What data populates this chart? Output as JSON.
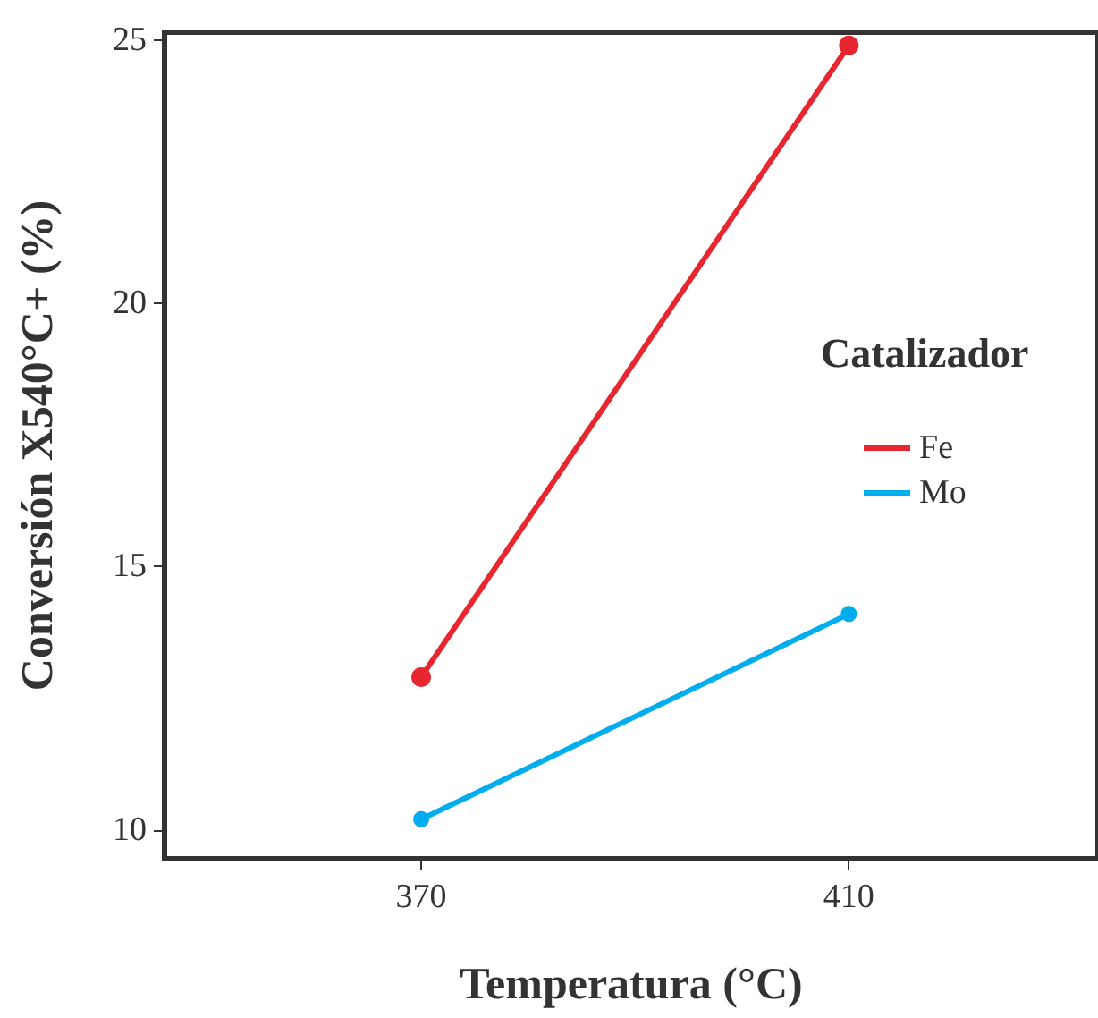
{
  "chart_data": {
    "type": "line",
    "xlabel": "Temperatura (°C)",
    "ylabel": "Conversión X540°C+ (%)",
    "legend_title": "Catalizador",
    "x": [
      370,
      410
    ],
    "xlim": [
      346,
      433.3
    ],
    "xticks": [
      370,
      410
    ],
    "ylim": [
      9.45,
      25.15
    ],
    "yticks": [
      10,
      15,
      20,
      25
    ],
    "series": [
      {
        "name": "Fe",
        "color": "#e8262f",
        "values": [
          12.9,
          24.9
        ]
      },
      {
        "name": "Mo",
        "color": "#00aeef",
        "values": [
          10.2,
          14.1
        ]
      }
    ],
    "marker": "circle",
    "line_style": "solid",
    "grid": false,
    "legend": "right"
  }
}
